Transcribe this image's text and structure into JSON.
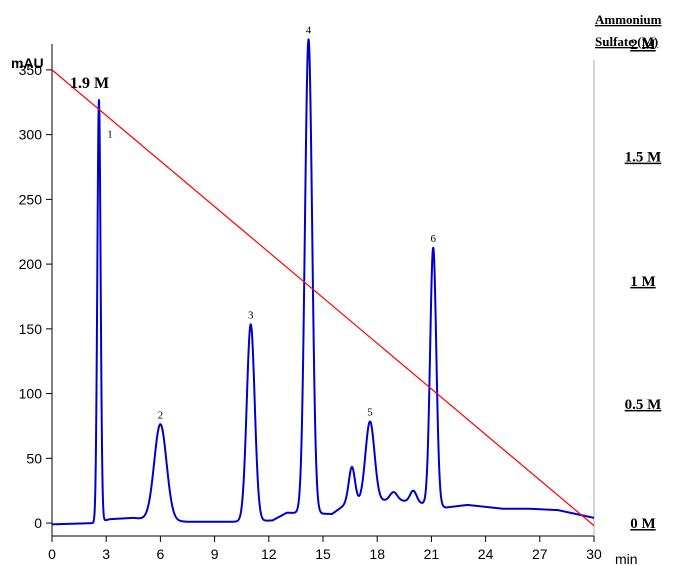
{
  "chart_data": {
    "type": "line",
    "ylabel": "mAU",
    "xlabel": "min",
    "y2label_lines": [
      "Ammonium",
      "Sulfate (M)"
    ],
    "gradient_start_label": "1.9 M",
    "xlim": [
      0,
      30
    ],
    "ylim": [
      -10,
      370
    ],
    "x_ticks": [
      0,
      3,
      6,
      9,
      12,
      15,
      18,
      21,
      24,
      27,
      30
    ],
    "y_ticks": [
      0,
      50,
      100,
      150,
      200,
      250,
      300,
      350
    ],
    "y2_ticks": [
      {
        "label": "2 M",
        "at_mau": 370
      },
      {
        "label": "1.5 M",
        "at_mau": 283
      },
      {
        "label": "1 M",
        "at_mau": 187
      },
      {
        "label": "0.5 M",
        "at_mau": 92
      },
      {
        "label": "0 M",
        "at_mau": 0
      }
    ],
    "series": [
      {
        "color": "#0000cc",
        "baseline": [
          [
            0,
            -1
          ],
          [
            2.4,
            0
          ],
          [
            3.2,
            3
          ],
          [
            4.5,
            4
          ],
          [
            5.2,
            3
          ],
          [
            7.5,
            1
          ],
          [
            10,
            1
          ],
          [
            12.2,
            2
          ],
          [
            13,
            8
          ],
          [
            15.5,
            7
          ],
          [
            16.3,
            15
          ],
          [
            19,
            18
          ],
          [
            20.5,
            15
          ],
          [
            21.8,
            12
          ],
          [
            23,
            14
          ],
          [
            25,
            11
          ],
          [
            26.5,
            11
          ],
          [
            28,
            10
          ],
          [
            29,
            7
          ],
          [
            30,
            4
          ]
        ],
        "peaks": [
          {
            "label": "1",
            "t": 2.6,
            "height": 326,
            "width": 0.09
          },
          {
            "label": "2",
            "t": 6.0,
            "height": 74,
            "width": 0.34
          },
          {
            "label": "3",
            "t": 11.0,
            "height": 152,
            "width": 0.22
          },
          {
            "label": "4",
            "t": 14.2,
            "height": 366,
            "width": 0.2
          },
          {
            "label": "",
            "t": 16.6,
            "height": 28,
            "width": 0.17
          },
          {
            "label": "5",
            "t": 17.6,
            "height": 62,
            "width": 0.25
          },
          {
            "label": "",
            "t": 18.9,
            "height": 6,
            "width": 0.2
          },
          {
            "label": "",
            "t": 20.0,
            "height": 9,
            "width": 0.18
          },
          {
            "label": "6",
            "t": 21.1,
            "height": 199,
            "width": 0.17
          }
        ]
      },
      {
        "color": "#ff0000",
        "points": [
          [
            0,
            350
          ],
          [
            30,
            -2
          ]
        ]
      }
    ],
    "grid": false
  }
}
